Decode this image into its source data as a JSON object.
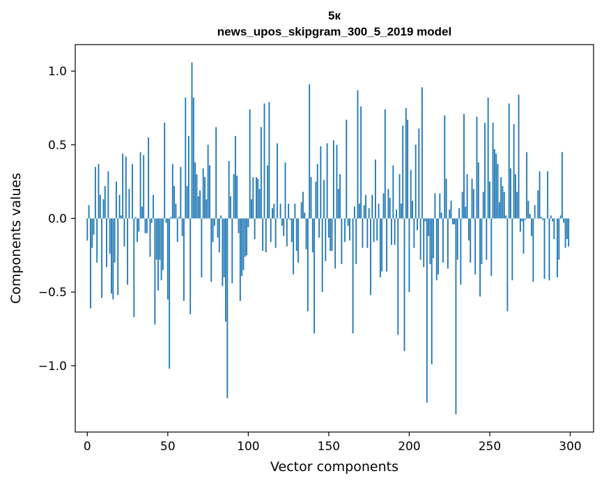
{
  "chart_data": {
    "type": "bar",
    "title": "5к",
    "subtitle": "news_upos_skipgram_300_5_2019 model",
    "xlabel": "Vector components",
    "ylabel": "Components values",
    "xlim": [
      -7.5,
      314.5
    ],
    "ylim": [
      -1.45,
      1.18
    ],
    "xticks": [
      0,
      50,
      100,
      150,
      200,
      250,
      300
    ],
    "xtick_labels": [
      "0",
      "50",
      "100",
      "150",
      "200",
      "250",
      "300"
    ],
    "yticks": [
      -1.0,
      -0.5,
      0.0,
      0.5,
      1.0
    ],
    "ytick_labels": [
      "−1.0",
      "−0.5",
      "0.0",
      "0.5",
      "1.0"
    ],
    "bar_color": "#1f77b4",
    "highlights": [
      [
        0,
        -0.15
      ],
      [
        2,
        -0.61
      ],
      [
        3,
        -0.2
      ],
      [
        5,
        0.35
      ],
      [
        6,
        -0.3
      ],
      [
        8,
        0.16
      ],
      [
        9,
        -0.54
      ],
      [
        10,
        0.13
      ],
      [
        11,
        0.22
      ],
      [
        12,
        -0.33
      ],
      [
        14,
        -0.24
      ],
      [
        15,
        -0.51
      ],
      [
        16,
        -0.55
      ],
      [
        17,
        -0.3
      ],
      [
        19,
        -0.52
      ],
      [
        20,
        0.16
      ],
      [
        22,
        0.44
      ],
      [
        23,
        -0.19
      ],
      [
        24,
        0.42
      ],
      [
        25,
        -0.45
      ],
      [
        28,
        0.37
      ],
      [
        29,
        -0.67
      ],
      [
        31,
        -0.16
      ],
      [
        32,
        -0.09
      ],
      [
        34,
        0.08
      ],
      [
        36,
        -0.1
      ],
      [
        38,
        0.55
      ],
      [
        39,
        -0.26
      ],
      [
        41,
        0.16
      ],
      [
        42,
        -0.72
      ],
      [
        44,
        -0.49
      ],
      [
        45,
        -0.28
      ],
      [
        47,
        -0.35
      ],
      [
        48,
        0.65
      ],
      [
        50,
        -0.55
      ],
      [
        51,
        -1.02
      ],
      [
        53,
        0.37
      ],
      [
        55,
        0.1
      ],
      [
        56,
        -0.16
      ],
      [
        58,
        0.35
      ],
      [
        60,
        -0.56
      ],
      [
        61,
        0.82
      ],
      [
        62,
        0.22
      ],
      [
        63,
        0.56
      ],
      [
        64,
        -0.65
      ],
      [
        65,
        1.06
      ],
      [
        66,
        0.82
      ],
      [
        67,
        0.38
      ],
      [
        69,
        0.15
      ],
      [
        70,
        0.19
      ],
      [
        71,
        -0.4
      ],
      [
        72,
        0.34
      ],
      [
        73,
        0.28
      ],
      [
        75,
        0.5
      ],
      [
        76,
        0.36
      ],
      [
        77,
        -0.43
      ],
      [
        79,
        -0.05
      ],
      [
        80,
        0.62
      ],
      [
        82,
        -0.23
      ],
      [
        84,
        -0.46
      ],
      [
        86,
        -0.7
      ],
      [
        87,
        -1.22
      ],
      [
        89,
        0.15
      ],
      [
        90,
        -0.44
      ],
      [
        91,
        0.3
      ],
      [
        92,
        0.56
      ],
      [
        93,
        0.29
      ],
      [
        94,
        -0.1
      ],
      [
        95,
        -0.56
      ],
      [
        96,
        -0.39
      ],
      [
        97,
        -0.35
      ],
      [
        99,
        -0.25
      ],
      [
        101,
        0.74
      ],
      [
        102,
        0.13
      ],
      [
        103,
        0.28
      ],
      [
        105,
        0.28
      ],
      [
        106,
        0.27
      ],
      [
        107,
        0.2
      ],
      [
        108,
        0.62
      ],
      [
        109,
        -0.22
      ],
      [
        110,
        0.78
      ],
      [
        111,
        -0.23
      ],
      [
        113,
        0.79
      ],
      [
        114,
        -0.16
      ],
      [
        116,
        0.1
      ],
      [
        117,
        -0.2
      ],
      [
        118,
        0.51
      ],
      [
        120,
        0.1
      ],
      [
        122,
        -0.12
      ],
      [
        125,
        0.1
      ],
      [
        127,
        -0.16
      ],
      [
        128,
        -0.38
      ],
      [
        129,
        0.1
      ],
      [
        131,
        -0.3
      ],
      [
        133,
        0.11
      ],
      [
        135,
        0.04
      ],
      [
        136,
        -0.21
      ],
      [
        137,
        -0.63
      ],
      [
        138,
        0.91
      ],
      [
        139,
        0.28
      ],
      [
        140,
        -0.23
      ],
      [
        141,
        -0.78
      ],
      [
        143,
        0.37
      ],
      [
        144,
        -0.13
      ],
      [
        145,
        0.49
      ],
      [
        146,
        -0.5
      ],
      [
        147,
        0.26
      ],
      [
        148,
        -0.29
      ],
      [
        149,
        0.51
      ],
      [
        150,
        -0.13
      ],
      [
        152,
        -0.22
      ],
      [
        153,
        0.53
      ],
      [
        154,
        -0.34
      ],
      [
        155,
        0.5
      ],
      [
        156,
        0.2
      ],
      [
        157,
        0.3
      ],
      [
        158,
        -0.31
      ],
      [
        160,
        -0.16
      ],
      [
        161,
        0.67
      ],
      [
        163,
        -0.15
      ],
      [
        165,
        -0.78
      ],
      [
        166,
        0.08
      ],
      [
        167,
        -0.31
      ],
      [
        168,
        0.87
      ],
      [
        169,
        0.1
      ],
      [
        170,
        0.76
      ],
      [
        171,
        -0.2
      ],
      [
        173,
        0.16
      ],
      [
        174,
        -0.2
      ],
      [
        175,
        0.07
      ],
      [
        176,
        -0.52
      ],
      [
        177,
        0.16
      ],
      [
        178,
        -0.16
      ],
      [
        179,
        0.4
      ],
      [
        180,
        -0.15
      ],
      [
        181,
        0.1
      ],
      [
        182,
        -0.4
      ],
      [
        183,
        -0.36
      ],
      [
        184,
        0.17
      ],
      [
        185,
        0.74
      ],
      [
        186,
        -0.36
      ],
      [
        187,
        0.2
      ],
      [
        188,
        0.14
      ],
      [
        189,
        -0.18
      ],
      [
        190,
        0.36
      ],
      [
        191,
        -0.18
      ],
      [
        192,
        0.06
      ],
      [
        193,
        -0.79
      ],
      [
        194,
        0.3
      ],
      [
        195,
        0.1
      ],
      [
        196,
        0.63
      ],
      [
        197,
        -0.9
      ],
      [
        198,
        0.75
      ],
      [
        199,
        0.67
      ],
      [
        200,
        -0.5
      ],
      [
        201,
        0.33
      ],
      [
        202,
        0.12
      ],
      [
        203,
        -0.2
      ],
      [
        204,
        0.5
      ],
      [
        206,
        0.61
      ],
      [
        207,
        -0.28
      ],
      [
        208,
        0.89
      ],
      [
        210,
        -0.02
      ],
      [
        211,
        -1.25
      ],
      [
        212,
        -0.12
      ],
      [
        213,
        -0.31
      ],
      [
        214,
        -0.99
      ],
      [
        215,
        -0.27
      ],
      [
        216,
        0.17
      ],
      [
        217,
        -0.42
      ],
      [
        218,
        -0.38
      ],
      [
        219,
        0.17
      ],
      [
        220,
        0.04
      ],
      [
        221,
        -0.3
      ],
      [
        222,
        0.7
      ],
      [
        224,
        -0.34
      ],
      [
        225,
        0.06
      ],
      [
        226,
        0.12
      ],
      [
        227,
        -0.04
      ],
      [
        229,
        -1.33
      ],
      [
        230,
        -0.28
      ],
      [
        231,
        0.07
      ],
      [
        232,
        -0.45
      ],
      [
        233,
        0.18
      ],
      [
        234,
        0.71
      ],
      [
        235,
        0.08
      ],
      [
        236,
        0.3
      ],
      [
        237,
        -0.15
      ],
      [
        238,
        -0.3
      ],
      [
        239,
        0.27
      ],
      [
        240,
        0.2
      ],
      [
        241,
        -0.38
      ],
      [
        242,
        0.69
      ],
      [
        243,
        0.38
      ],
      [
        244,
        -0.53
      ],
      [
        245,
        -0.31
      ],
      [
        246,
        0.18
      ],
      [
        247,
        0.65
      ],
      [
        248,
        -0.28
      ],
      [
        249,
        0.82
      ],
      [
        250,
        0.25
      ],
      [
        251,
        -0.39
      ],
      [
        252,
        0.65
      ],
      [
        253,
        0.47
      ],
      [
        254,
        0.44
      ],
      [
        255,
        0.37
      ],
      [
        256,
        0.11
      ],
      [
        257,
        0.28
      ],
      [
        258,
        0.22
      ],
      [
        259,
        0.18
      ],
      [
        260,
        0.02
      ],
      [
        261,
        -0.63
      ],
      [
        262,
        0.78
      ],
      [
        263,
        0.34
      ],
      [
        264,
        -0.42
      ],
      [
        265,
        0.64
      ],
      [
        266,
        0.3
      ],
      [
        267,
        0.18
      ],
      [
        268,
        0.84
      ],
      [
        269,
        -0.09
      ]
    ]
  }
}
